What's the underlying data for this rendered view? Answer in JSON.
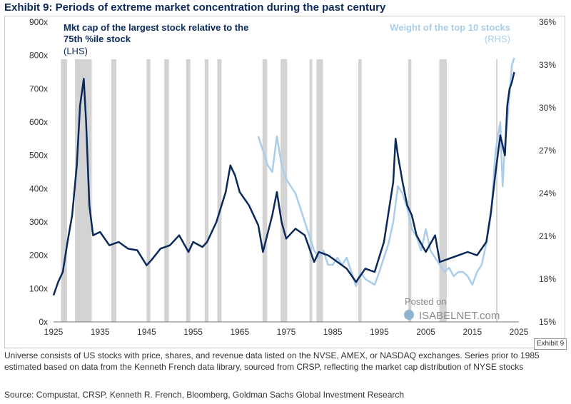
{
  "page": {
    "title": "Exhibit 9: Periods of extreme market concentration during the past century",
    "exhibit_tag": "Exhibit 9",
    "footnote": "Universe consists of US stocks with price, shares, and revenue data listed on the NVSE, AMEX, or NASDAQ exchanges. Series prior to 1985 estimated based on data from the Kenneth French data library, sourced from CRSP, reflecting the market cap distribution of NYSE stocks",
    "source": "Source: Compustat, CRSP, Kenneth R. French, Bloomberg, Goldman Sachs Global Investment Research",
    "watermark": {
      "posted": "Posted on",
      "site": "ISABELNET.com"
    }
  },
  "colors": {
    "lhs_series": "#0b2a5b",
    "rhs_series": "#a9cdea",
    "recession_band": "#d3d3d3",
    "title": "#0b2a5b"
  },
  "chart_data": {
    "type": "line",
    "title": "Exhibit 9: Periods of extreme market concentration during the past century",
    "xlabel": "",
    "ylabel_left": "",
    "ylabel_right": "",
    "x_ticks": [
      "1925",
      "1935",
      "1945",
      "1955",
      "1965",
      "1975",
      "1985",
      "1995",
      "2005",
      "2015",
      "2025"
    ],
    "xlim": [
      1925,
      2025
    ],
    "y_left": {
      "ticks": [
        "0x",
        "100x",
        "200x",
        "300x",
        "400x",
        "500x",
        "600x",
        "700x",
        "800x",
        "900x"
      ],
      "lim": [
        0,
        900
      ]
    },
    "y_right": {
      "ticks": [
        "15%",
        "18%",
        "21%",
        "24%",
        "27%",
        "30%",
        "33%",
        "36%"
      ],
      "lim": [
        15,
        36
      ]
    },
    "recessions": [
      [
        1926.6,
        1927.9
      ],
      [
        1929.6,
        1933.2
      ],
      [
        1937.4,
        1938.5
      ],
      [
        1945.0,
        1945.8
      ],
      [
        1948.8,
        1949.8
      ],
      [
        1953.5,
        1954.4
      ],
      [
        1957.5,
        1958.3
      ],
      [
        1960.2,
        1961.1
      ],
      [
        1969.9,
        1970.9
      ],
      [
        1973.8,
        1975.2
      ],
      [
        1980.0,
        1980.6
      ],
      [
        1981.5,
        1982.9
      ],
      [
        1990.5,
        1991.2
      ],
      [
        2001.2,
        2001.9
      ],
      [
        2007.9,
        2009.5
      ],
      [
        2020.1,
        2020.4
      ]
    ],
    "series": [
      {
        "name": "Mkt cap of the largest stock relative to the 75th %ile stock",
        "axis": "left",
        "legend_label_1": "Mkt cap of the largest stock relative to the",
        "legend_label_2": "75th %ile stock",
        "axis_label": "(LHS)",
        "x": [
          1925,
          1926,
          1927,
          1928,
          1929,
          1930,
          1930.7,
          1931.5,
          1932,
          1932.7,
          1933.5,
          1935,
          1937,
          1939,
          1941,
          1943,
          1945,
          1946,
          1948,
          1950,
          1952,
          1954,
          1955,
          1957,
          1958,
          1960,
          1962,
          1963,
          1964,
          1965,
          1967,
          1969,
          1970,
          1972,
          1973,
          1974,
          1975,
          1977,
          1979,
          1981,
          1982,
          1984,
          1986,
          1988,
          1990,
          1992,
          1994,
          1996,
          1997,
          1998,
          1998.5,
          1999,
          2000,
          2001,
          2002,
          2003,
          2005,
          2007,
          2008,
          2010,
          2012,
          2014,
          2016,
          2018,
          2019,
          2020,
          2021,
          2022,
          2022.5,
          2023,
          2023.5,
          2024
        ],
        "values": [
          80,
          120,
          150,
          240,
          320,
          470,
          650,
          730,
          600,
          350,
          260,
          270,
          230,
          240,
          220,
          215,
          170,
          185,
          220,
          230,
          260,
          210,
          240,
          225,
          240,
          300,
          390,
          470,
          440,
          390,
          350,
          290,
          210,
          320,
          390,
          300,
          250,
          280,
          260,
          180,
          210,
          200,
          180,
          160,
          120,
          160,
          150,
          240,
          330,
          420,
          550,
          500,
          420,
          350,
          320,
          260,
          210,
          260,
          180,
          190,
          200,
          210,
          200,
          240,
          330,
          450,
          560,
          500,
          650,
          700,
          720,
          750
        ]
      },
      {
        "name": "Weight of the top 10 stocks",
        "axis": "right",
        "legend_label_1": "Weight of the top 10 stocks",
        "axis_label": "(RHS)",
        "x": [
          1969,
          1970,
          1971,
          1972,
          1973,
          1974,
          1975,
          1976,
          1977,
          1978,
          1979,
          1980,
          1981,
          1982,
          1983,
          1984,
          1985,
          1986,
          1987,
          1988,
          1989,
          1990,
          1991,
          1992,
          1993,
          1994,
          1995,
          1996,
          1997,
          1998,
          1999,
          2000,
          2001,
          2002,
          2003,
          2004,
          2005,
          2006,
          2007,
          2008,
          2009,
          2010,
          2011,
          2012,
          2013,
          2014,
          2015,
          2016,
          2017,
          2018,
          2019,
          2020,
          2021,
          2021.5,
          2022,
          2022.5,
          2023,
          2023.5,
          2024
        ],
        "values": [
          28,
          27,
          26,
          25.5,
          28,
          26,
          25,
          24.5,
          24,
          23,
          22,
          21,
          20,
          19.5,
          20,
          19,
          19,
          19.5,
          19,
          19.5,
          18.5,
          17.5,
          18.5,
          18,
          17.8,
          17.6,
          18.5,
          19.5,
          20.5,
          22,
          24.5,
          24,
          23,
          21.5,
          21,
          20,
          21.5,
          20,
          19.5,
          19,
          18.5,
          18.8,
          18.2,
          18.5,
          18.5,
          18.2,
          17.6,
          18.5,
          19,
          20.5,
          22.5,
          27,
          29,
          24.5,
          27.5,
          29,
          31,
          33,
          33.5
        ]
      }
    ]
  }
}
